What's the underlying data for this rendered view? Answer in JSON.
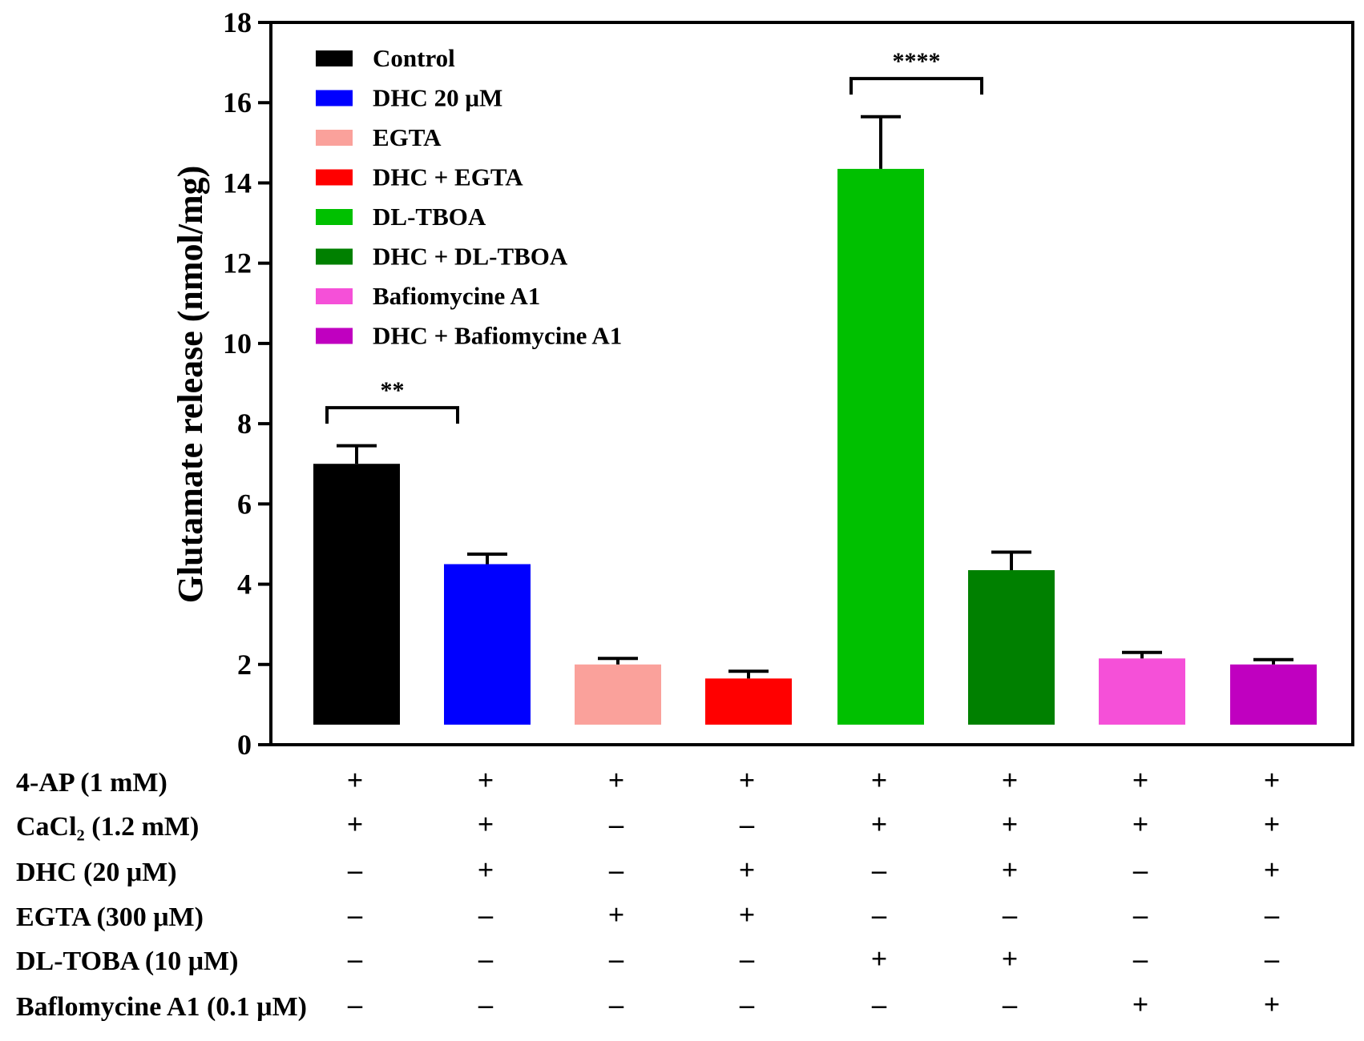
{
  "chart_data": {
    "type": "bar",
    "ylabel": "Glutamate release (nmol/mg)",
    "xlabel": "",
    "ylim": [
      0,
      18
    ],
    "yticks": [
      0,
      2,
      4,
      6,
      8,
      10,
      12,
      14,
      16,
      18
    ],
    "grid": false,
    "legend_position": "top-left",
    "categories": [
      "Control",
      "DHC 20 μM",
      "EGTA",
      "DHC + EGTA",
      "DL-TBOA",
      "DHC + DL-TBOA",
      "Bafiomycine A1",
      "DHC + Bafiomycine A1"
    ],
    "values": [
      7.0,
      4.5,
      2.0,
      1.65,
      14.35,
      4.35,
      2.15,
      2.0
    ],
    "errors": [
      0.45,
      0.25,
      0.15,
      0.18,
      1.3,
      0.45,
      0.15,
      0.12
    ],
    "colors": [
      "#000000",
      "#0000ff",
      "#faa19b",
      "#ff0000",
      "#00c000",
      "#008000",
      "#f550d8",
      "#c000c0"
    ],
    "significance": [
      {
        "from": 0,
        "to": 1,
        "label": "**",
        "y": 8.4
      },
      {
        "from": 4,
        "to": 5,
        "label": "****",
        "y": 16.6
      }
    ],
    "conditions": [
      {
        "label": "4-AP (1 mM)",
        "signs": [
          "+",
          "+",
          "+",
          "+",
          "+",
          "+",
          "+",
          "+"
        ]
      },
      {
        "label": "CaCl₂ (1.2 mM)",
        "signs": [
          "+",
          "+",
          "–",
          "–",
          "+",
          "+",
          "+",
          "+"
        ]
      },
      {
        "label": "DHC (20 μM)",
        "signs": [
          "–",
          "+",
          "–",
          "+",
          "–",
          "+",
          "–",
          "+"
        ]
      },
      {
        "label": "EGTA (300 μM)",
        "signs": [
          "–",
          "–",
          "+",
          "+",
          "–",
          "–",
          "–",
          "–"
        ]
      },
      {
        "label": "DL-TOBA (10 μM)",
        "signs": [
          "–",
          "–",
          "–",
          "–",
          "+",
          "+",
          "–",
          "–"
        ]
      },
      {
        "label": "Baflomycine A1 (0.1 μM)",
        "signs": [
          "–",
          "–",
          "–",
          "–",
          "–",
          "–",
          "+",
          "+"
        ]
      }
    ]
  }
}
